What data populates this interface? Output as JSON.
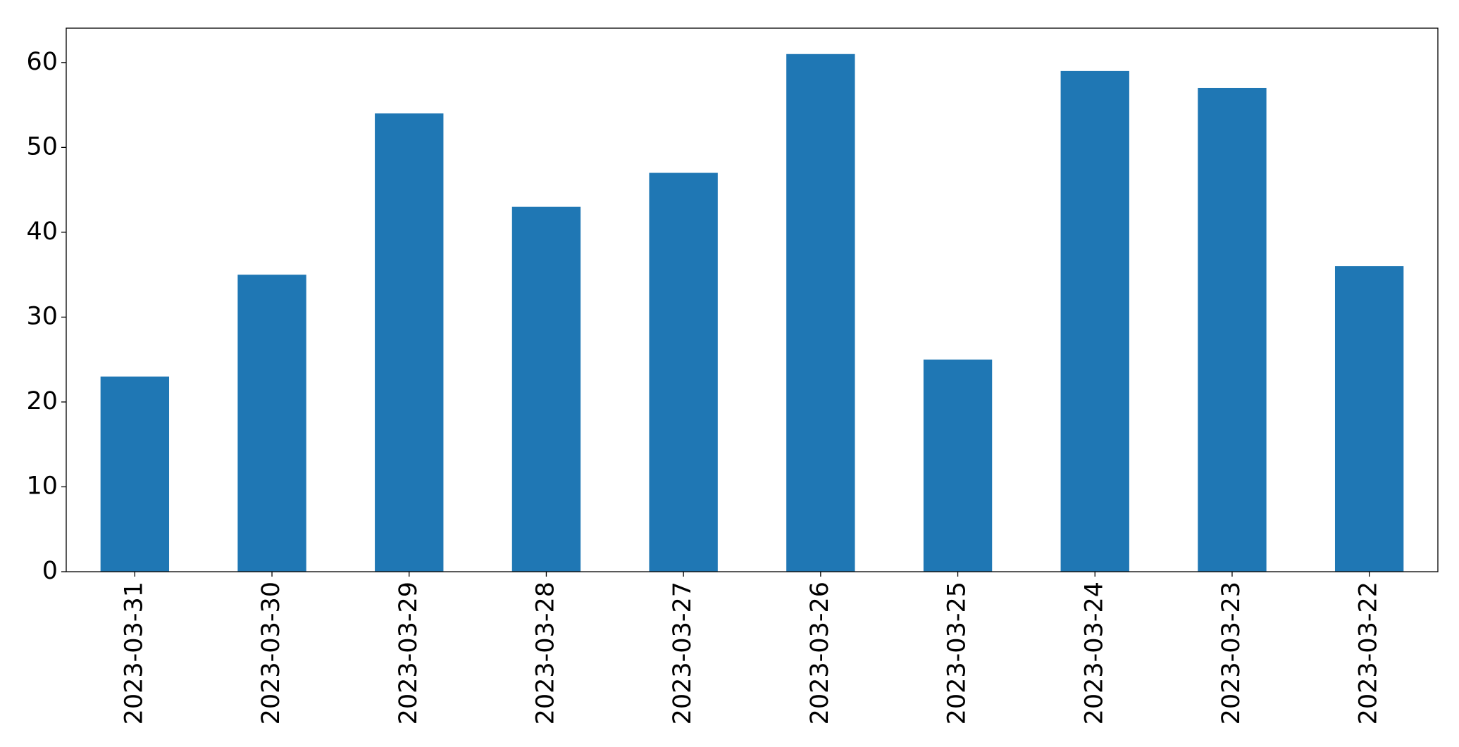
{
  "chart_data": {
    "type": "bar",
    "categories": [
      "2023-03-31",
      "2023-03-30",
      "2023-03-29",
      "2023-03-28",
      "2023-03-27",
      "2023-03-26",
      "2023-03-25",
      "2023-03-24",
      "2023-03-23",
      "2023-03-22"
    ],
    "values": [
      23,
      35,
      54,
      43,
      47,
      61,
      25,
      59,
      57,
      36
    ],
    "color": "#1f77b4",
    "ylim": [
      0,
      64.05
    ],
    "yticks": [
      0,
      10,
      20,
      30,
      40,
      50,
      60
    ],
    "grid": false
  }
}
